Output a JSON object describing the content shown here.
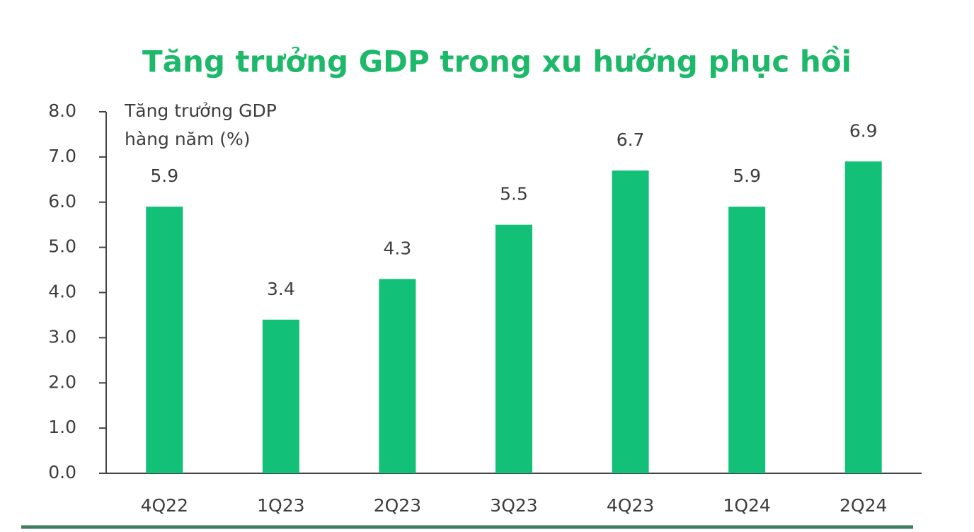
{
  "chart_data": {
    "type": "bar",
    "title": "Tăng trưởng GDP trong xu hướng phục hồi",
    "y_label": [
      "Tăng trưởng GDP",
      "hàng năm (%)"
    ],
    "categories": [
      "4Q22",
      "1Q23",
      "2Q23",
      "3Q23",
      "4Q23",
      "1Q24",
      "2Q24"
    ],
    "values": [
      5.9,
      3.4,
      4.3,
      5.5,
      6.7,
      5.9,
      6.9
    ],
    "color": "#12c077",
    "ylim": [
      0,
      8
    ],
    "yticks": [
      {
        "value": 0,
        "label": "0.0"
      },
      {
        "value": 1,
        "label": "1.0"
      },
      {
        "value": 2,
        "label": "2.0"
      },
      {
        "value": 3,
        "label": "3.0"
      },
      {
        "value": 4,
        "label": "4.0"
      },
      {
        "value": 5,
        "label": "5.0"
      },
      {
        "value": 6,
        "label": "6.0"
      },
      {
        "value": 7,
        "label": "7.0"
      },
      {
        "value": 8,
        "label": "8.0"
      }
    ]
  }
}
